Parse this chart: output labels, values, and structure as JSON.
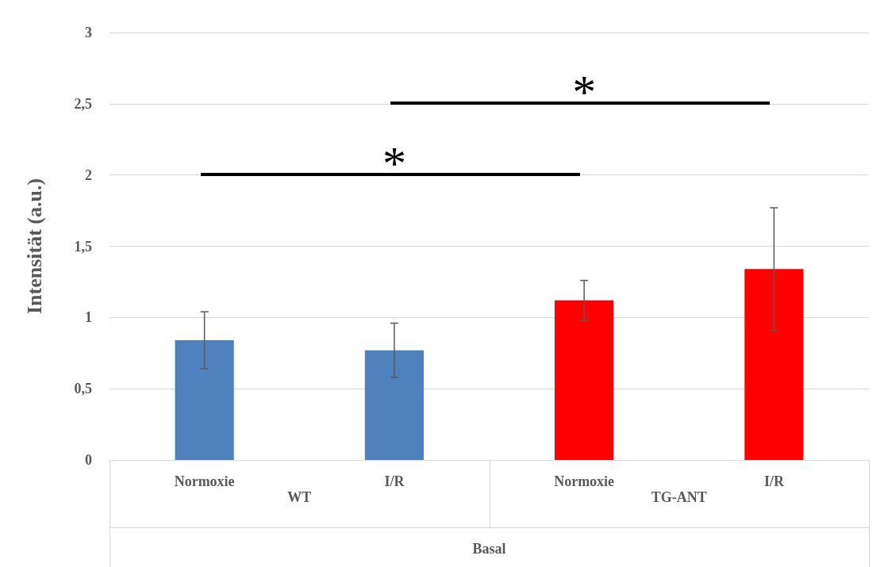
{
  "chart_data": {
    "type": "bar",
    "ylabel": "Intensität (a.u.)",
    "categories": [
      "Normoxie",
      "I/R",
      "Normoxie",
      "I/R"
    ],
    "values": [
      0.84,
      0.77,
      1.12,
      1.34
    ],
    "colors": [
      "#4f81bd",
      "#4f81bd",
      "#ff0000",
      "#ff0000"
    ],
    "errors": [
      0.2,
      0.19,
      0.14,
      0.43
    ],
    "ylim": [
      0,
      3
    ],
    "yticks": [
      0,
      {
        "value": 0.5,
        "label": "0,5"
      },
      1,
      {
        "value": 1.5,
        "label": "1,5"
      },
      2,
      {
        "value": 2.5,
        "label": "2,5"
      },
      3
    ],
    "grid": "y",
    "annotations": [
      "*",
      "*",
      "WT",
      "TG-ANT",
      "Basal"
    ]
  }
}
